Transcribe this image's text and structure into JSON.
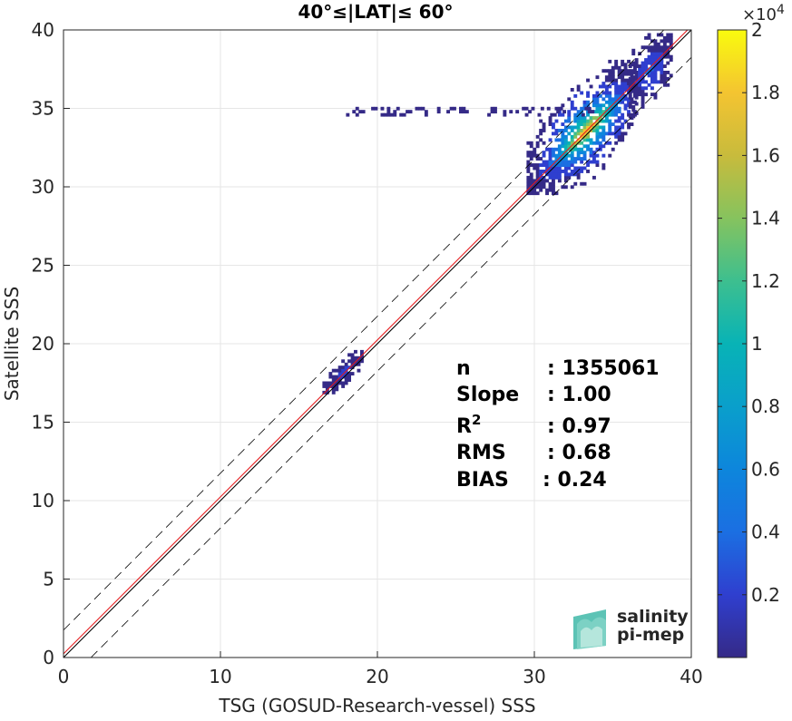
{
  "chart_data": {
    "type": "heatmap",
    "title": "40°≤|LAT|≤ 60°",
    "xlabel": "TSG (GOSUD-Research-vessel) SSS",
    "ylabel": "Satellite SSS",
    "xlim": [
      0,
      40
    ],
    "ylim": [
      0,
      40
    ],
    "x_ticks": [
      "0",
      "10",
      "20",
      "30",
      "40"
    ],
    "y_ticks": [
      "0",
      "5",
      "10",
      "15",
      "20",
      "25",
      "30",
      "35",
      "40"
    ],
    "grid": true,
    "reference_lines": [
      {
        "name": "1:1",
        "slope": 1,
        "intercept": 0,
        "color": "#000000",
        "style": "solid"
      },
      {
        "name": "fit",
        "slope": 1.0,
        "intercept": 0.24,
        "color": "#e41a1c",
        "style": "solid"
      },
      {
        "name": "upper",
        "slope": 1,
        "intercept": 1.75,
        "color": "#000000",
        "style": "dashed"
      },
      {
        "name": "lower",
        "slope": 1,
        "intercept": -1.75,
        "color": "#000000",
        "style": "dashed"
      }
    ],
    "density_clusters": [
      {
        "x_range": [
          16.5,
          19.0
        ],
        "y_range": [
          16.8,
          19.4
        ],
        "peak_count": 1500
      },
      {
        "x_range": [
          29.5,
          36.5
        ],
        "y_range": [
          29.5,
          38.0
        ],
        "peak_count": 20000
      },
      {
        "x_range": [
          36.0,
          38.8
        ],
        "y_range": [
          34.0,
          39.8
        ],
        "peak_count": 4000
      },
      {
        "x_range": [
          18.0,
          34.0
        ],
        "y_range": [
          34.5,
          35.0
        ],
        "peak_count": 200
      }
    ],
    "colorbar": {
      "range": [
        0,
        2
      ],
      "exponent_label": "×10",
      "exponent": "4",
      "ticks": [
        "0.2",
        "0.4",
        "0.6",
        "0.8",
        "1",
        "1.2",
        "1.4",
        "1.6",
        "1.8",
        "2"
      ],
      "colormap": "parula"
    },
    "stats": [
      {
        "label": "n",
        "value": ": 1355061"
      },
      {
        "label": "Slope",
        "value": ": 1.00"
      },
      {
        "label": "R",
        "sup": "2",
        "value": ": 0.97"
      },
      {
        "label": "RMS",
        "value": ": 0.68"
      },
      {
        "label": "BIAS",
        "value": ": 0.24"
      }
    ]
  },
  "logo": {
    "line1": "salinity",
    "line2": "pi-mep",
    "color_primary": "#2aa198",
    "color_secondary": "#1a6f6a"
  },
  "colors": {
    "axis": "#262626",
    "grid": "#e6e6e6",
    "fit_line": "#e41a1c"
  }
}
